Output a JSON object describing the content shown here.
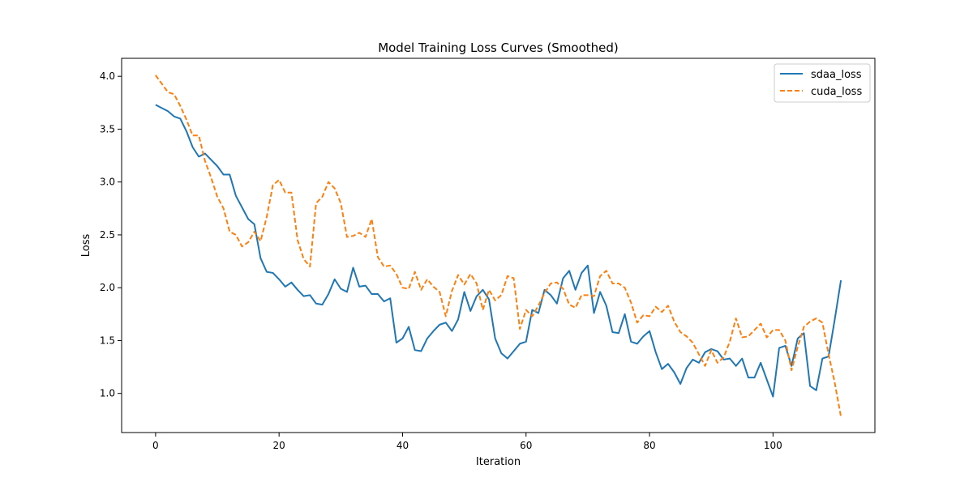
{
  "chart_data": {
    "type": "line",
    "title": "Model Training Loss Curves (Smoothed)",
    "xlabel": "Iteration",
    "ylabel": "Loss",
    "xlim": [
      -5.5,
      116.5
    ],
    "ylim": [
      0.63,
      4.17
    ],
    "xticks": [
      0,
      20,
      40,
      60,
      80,
      100
    ],
    "yticks": [
      1.0,
      1.5,
      2.0,
      2.5,
      3.0,
      3.5,
      4.0
    ],
    "grid": false,
    "legend_position": "top-right",
    "series": [
      {
        "name": "sdaa_loss",
        "color": "#1f77b4",
        "style": "solid",
        "values": [
          3.73,
          3.7,
          3.67,
          3.62,
          3.6,
          3.48,
          3.33,
          3.24,
          3.27,
          3.21,
          3.15,
          3.07,
          3.07,
          2.87,
          2.76,
          2.65,
          2.6,
          2.28,
          2.15,
          2.14,
          2.08,
          2.01,
          2.05,
          1.98,
          1.92,
          1.93,
          1.85,
          1.84,
          1.94,
          2.08,
          1.99,
          1.96,
          2.19,
          2.01,
          2.02,
          1.94,
          1.94,
          1.87,
          1.9,
          1.48,
          1.52,
          1.63,
          1.41,
          1.4,
          1.52,
          1.59,
          1.65,
          1.67,
          1.59,
          1.7,
          1.96,
          1.78,
          1.92,
          1.98,
          1.89,
          1.52,
          1.38,
          1.33,
          1.4,
          1.47,
          1.49,
          1.79,
          1.76,
          1.98,
          1.93,
          1.85,
          2.09,
          2.16,
          1.98,
          2.14,
          2.21,
          1.76,
          1.96,
          1.83,
          1.58,
          1.57,
          1.75,
          1.49,
          1.47,
          1.54,
          1.59,
          1.39,
          1.23,
          1.28,
          1.2,
          1.09,
          1.24,
          1.32,
          1.29,
          1.39,
          1.42,
          1.4,
          1.32,
          1.33,
          1.26,
          1.33,
          1.15,
          1.15,
          1.29,
          1.13,
          0.97,
          1.43,
          1.45,
          1.26,
          1.52,
          1.57,
          1.07,
          1.03,
          1.33,
          1.35,
          1.7,
          2.07
        ]
      },
      {
        "name": "cuda_loss",
        "color": "#ff7f0e",
        "style": "dashed",
        "values": [
          4.01,
          3.93,
          3.85,
          3.83,
          3.72,
          3.59,
          3.44,
          3.44,
          3.2,
          3.04,
          2.86,
          2.75,
          2.53,
          2.5,
          2.39,
          2.43,
          2.53,
          2.44,
          2.67,
          2.97,
          3.02,
          2.9,
          2.9,
          2.45,
          2.27,
          2.2,
          2.8,
          2.86,
          3.0,
          2.94,
          2.8,
          2.48,
          2.49,
          2.52,
          2.48,
          2.65,
          2.29,
          2.2,
          2.21,
          2.13,
          2.0,
          1.99,
          2.15,
          1.98,
          2.08,
          2.01,
          1.96,
          1.73,
          1.97,
          2.12,
          2.03,
          2.13,
          2.04,
          1.79,
          1.98,
          1.88,
          1.93,
          2.11,
          2.09,
          1.61,
          1.79,
          1.73,
          1.83,
          1.95,
          2.04,
          2.05,
          1.99,
          1.84,
          1.81,
          1.93,
          1.93,
          1.92,
          2.11,
          2.16,
          2.04,
          2.04,
          2.0,
          1.86,
          1.67,
          1.74,
          1.73,
          1.82,
          1.77,
          1.83,
          1.68,
          1.58,
          1.54,
          1.48,
          1.37,
          1.26,
          1.41,
          1.29,
          1.34,
          1.49,
          1.71,
          1.53,
          1.54,
          1.6,
          1.66,
          1.53,
          1.6,
          1.6,
          1.5,
          1.22,
          1.44,
          1.63,
          1.68,
          1.71,
          1.67,
          1.37,
          1.1,
          0.78
        ]
      }
    ]
  }
}
